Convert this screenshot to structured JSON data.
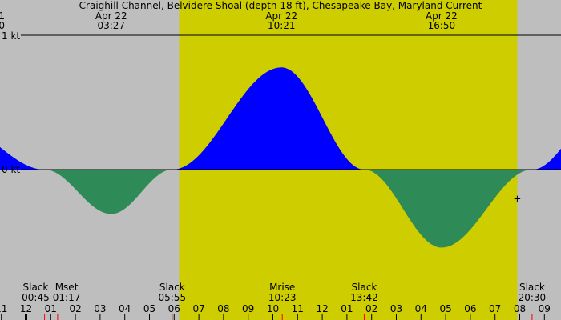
{
  "chart_data": {
    "type": "area",
    "title": "Craighill Channel, Belvidere Shoal (depth 18 ft), Chesapeake Bay, Maryland Current",
    "units": "kt",
    "y_tick_labels": [
      "1 kt",
      "0 kt"
    ],
    "y_ticks": [
      1,
      0
    ],
    "ylim": [
      -0.94,
      1.26
    ],
    "xlim_hours": [
      -1.05,
      21.7
    ],
    "colors": {
      "background": "#bebebe",
      "daylight": "#cdcd00",
      "flood": "#0000ff",
      "ebb": "#2e8b57",
      "event_tick": "#ff0000"
    },
    "daylight_hours": [
      6.2,
      19.9
    ],
    "hour_tick_labels": [
      "11",
      "12",
      "01",
      "02",
      "03",
      "04",
      "05",
      "06",
      "07",
      "08",
      "09",
      "10",
      "11",
      "12",
      "01",
      "02",
      "03",
      "04",
      "05",
      "06",
      "07",
      "08",
      "09"
    ],
    "peaks": [
      {
        "date": "1",
        "time": "0",
        "hour": -2.83,
        "value": 0.33
      },
      {
        "date": "Apr 22",
        "time": "03:27",
        "hour": 3.45,
        "value": -0.33
      },
      {
        "date": "Apr 22",
        "time": "10:21",
        "hour": 10.35,
        "value": 0.76
      },
      {
        "date": "Apr 22",
        "time": "16:50",
        "hour": 16.83,
        "value": -0.58
      },
      {
        "date": "",
        "time": "",
        "hour": 23.6,
        "value": 0.5
      }
    ],
    "events": [
      {
        "label": "Slack",
        "time": "00:45",
        "hour": 0.75
      },
      {
        "label": "Mset",
        "time": "01:17",
        "hour": 1.28
      },
      {
        "label": "Slack",
        "time": "05:55",
        "hour": 5.92
      },
      {
        "label": "Mrise",
        "time": "10:23",
        "hour": 10.38
      },
      {
        "label": "Slack",
        "time": "13:42",
        "hour": 13.7
      },
      {
        "label": "Slack",
        "time": "20:30",
        "hour": 20.5
      }
    ],
    "slacks_hours": [
      0.75,
      5.92,
      13.7,
      20.5
    ],
    "marker": {
      "symbol": "+",
      "hour": 19.9,
      "value": -0.21
    }
  }
}
